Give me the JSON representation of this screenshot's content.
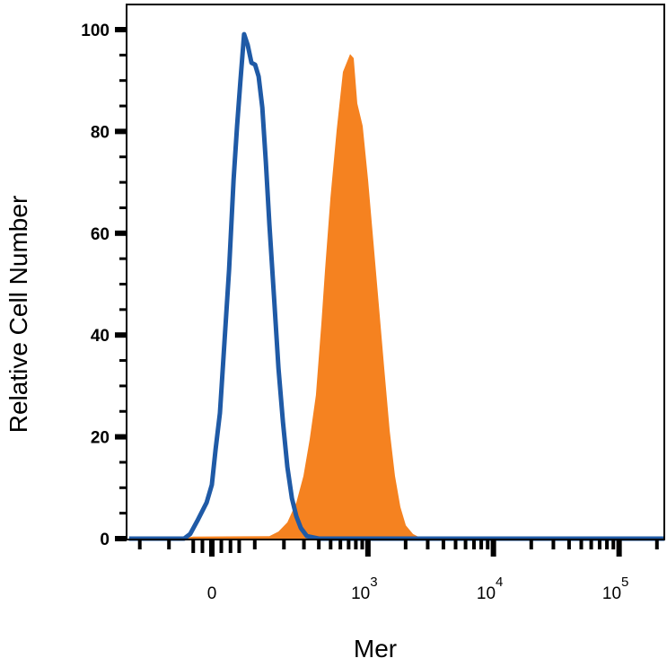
{
  "chart_data": {
    "type": "area",
    "xlabel": "Mer",
    "ylabel": "Relative Cell Number",
    "x_scale": "biexponential",
    "xlim": [
      -250,
      230000
    ],
    "ylim": [
      0,
      105
    ],
    "grid": false,
    "y_ticks": [
      0,
      20,
      40,
      60,
      80,
      100
    ],
    "y_tick_labels": [
      "0",
      "20",
      "40",
      "60",
      "80",
      "100"
    ],
    "x_ticks": [
      0,
      1000,
      10000,
      100000
    ],
    "x_tick_labels": [
      {
        "base": "0",
        "exp": ""
      },
      {
        "base": "10",
        "exp": "3"
      },
      {
        "base": "10",
        "exp": "4"
      },
      {
        "base": "10",
        "exp": "5"
      }
    ],
    "series": [
      {
        "style": "filled",
        "color": "#f58220",
        "x": [
          -72,
          -40,
          145,
          178,
          215,
          258,
          297,
          335,
          378,
          420,
          450,
          498,
          560,
          629,
          719,
          769,
          822,
          907,
          1003,
          1107,
          1222,
          1350,
          1492,
          1645,
          1817,
          2008,
          2290,
          2700,
          230000
        ],
        "y": [
          0,
          0.4,
          0.5,
          1.4,
          3.2,
          7.1,
          12.3,
          19.4,
          28.2,
          42.3,
          52.9,
          67.0,
          80.2,
          91.7,
          95.2,
          94.4,
          85.5,
          81.1,
          70.5,
          58.2,
          45.9,
          33.5,
          21.2,
          12.3,
          6.2,
          2.6,
          0.9,
          0,
          0
        ]
      },
      {
        "style": "outline",
        "color": "#1f5aa6",
        "x": [
          -250,
          -61,
          -47,
          -31,
          -11,
          0,
          8,
          17,
          27,
          37,
          47,
          55,
          63,
          72,
          81,
          91,
          101,
          111,
          122,
          133,
          145,
          161,
          178,
          196,
          215,
          236,
          258,
          282,
          318,
          399,
          230000
        ],
        "y": [
          0,
          0,
          0.9,
          3.5,
          7.1,
          10.6,
          17.6,
          24.7,
          38.8,
          52.9,
          70.5,
          81.1,
          89.9,
          99.1,
          97.0,
          93.5,
          93.1,
          90.8,
          84.7,
          74.1,
          61.7,
          47.6,
          33.5,
          22.9,
          14.1,
          7.9,
          4.4,
          2.1,
          0.5,
          0,
          0
        ]
      }
    ]
  }
}
